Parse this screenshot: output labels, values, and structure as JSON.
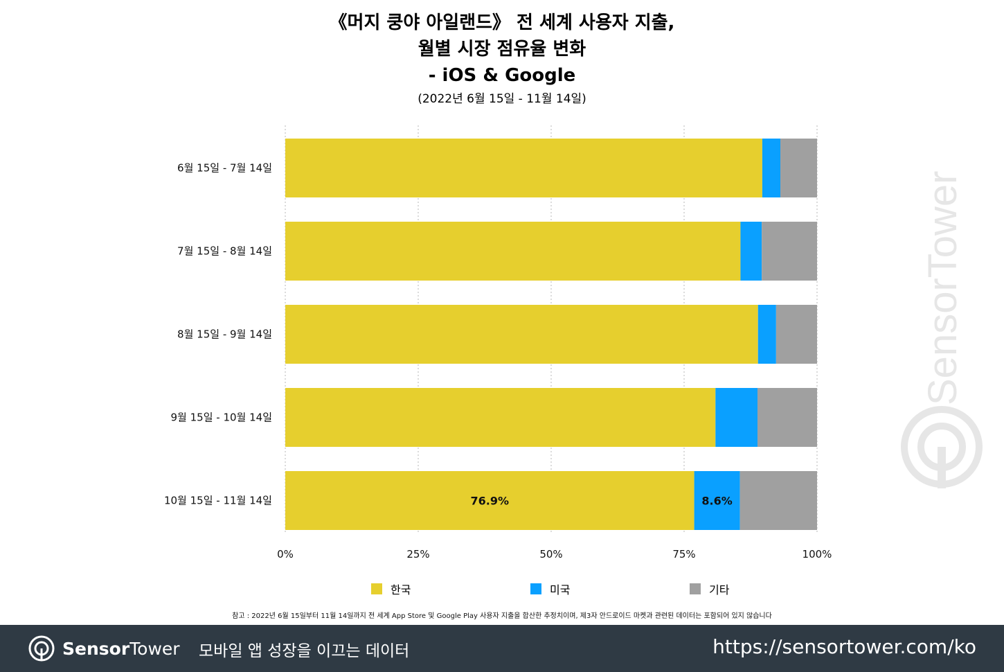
{
  "chart_data": {
    "type": "bar",
    "orientation": "horizontal",
    "stacked": true,
    "title_lines": [
      "《머지 쿵야 아일랜드》 전 세계 사용자 지출,",
      "월별 시장 점유율 변화",
      "- iOS & Google"
    ],
    "subtitle": "(2022년 6월 15일 - 11월 14일)",
    "categories": [
      "6월 15일 - 7월 14일",
      "7월 15일 - 8월 14일",
      "8월 15일 - 9월 14일",
      "9월 15일 - 10월 14일",
      "10월 15일 - 11월 14일"
    ],
    "series": [
      {
        "name": "한국",
        "color": "#e6cf2e",
        "values": [
          89.7,
          85.6,
          88.9,
          80.9,
          76.9
        ]
      },
      {
        "name": "미국",
        "color": "#0aa0ff",
        "values": [
          3.4,
          4.0,
          3.4,
          7.9,
          8.6
        ]
      },
      {
        "name": "기타",
        "color": "#a0a0a0",
        "values": [
          6.9,
          10.4,
          7.7,
          11.2,
          14.5
        ]
      }
    ],
    "data_labels": [
      {
        "category_index": 4,
        "series_index": 0,
        "text": "76.9%"
      },
      {
        "category_index": 4,
        "series_index": 1,
        "text": "8.6%"
      }
    ],
    "xlim": [
      0,
      100
    ],
    "xticks": [
      0,
      25,
      50,
      75,
      100
    ],
    "xtick_labels": [
      "0%",
      "25%",
      "50%",
      "75%",
      "100%"
    ],
    "grid": "vertical-dotted",
    "legend_position": "bottom"
  },
  "footnote": "참고 : 2022년 6월 15일부터 11월 14일까지 전 세계 App Store 및 Google Play 사용자 지출을 합산한 추정치이며, 제3자 안드로이드 마켓과 관련된 데이터는 포함되어 있지 않습니다",
  "footer": {
    "brand_part1": "Sensor",
    "brand_part2": "Tower",
    "tagline": "모바일 앱 성장을 이끄는 데이터",
    "url": "https://sensortower.com/ko",
    "background": "#2f3a44"
  },
  "watermark": {
    "text": "SensorTower",
    "color": "#e6e6e6"
  }
}
